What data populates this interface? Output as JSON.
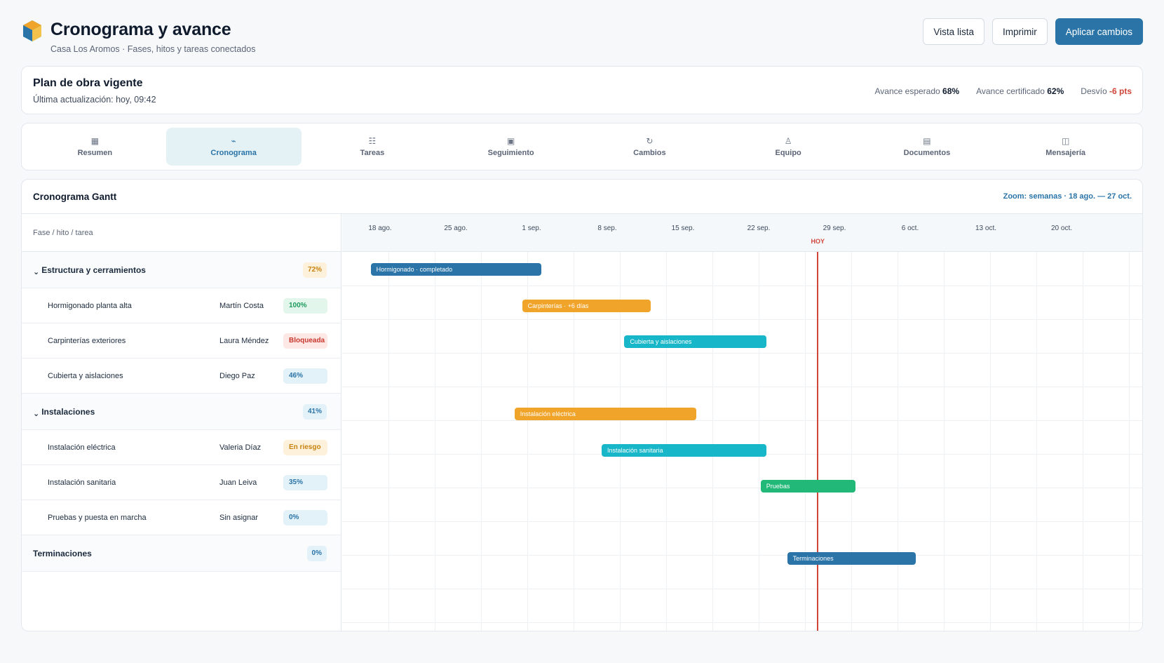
{
  "header": {
    "title": "Cronograma y avance",
    "subtitle": "Casa Los Aromos · Fases, hitos y tareas conectados",
    "buttons": {
      "list_view": "Vista lista",
      "print": "Imprimir",
      "apply": "Aplicar cambios"
    }
  },
  "plan": {
    "title": "Plan de obra vigente",
    "updated": "Última actualización: hoy, 09:42",
    "stats": [
      {
        "label": "Avance esperado",
        "value": "68%",
        "negative": false
      },
      {
        "label": "Avance certificado",
        "value": "62%",
        "negative": false
      },
      {
        "label": "Desvío",
        "value": "-6 pts",
        "negative": true
      }
    ]
  },
  "tabs": [
    {
      "label": "Resumen",
      "icon": "▦",
      "icon_name": "grid-icon",
      "active": false
    },
    {
      "label": "Cronograma",
      "icon": "⌁",
      "icon_name": "chart-line-icon",
      "active": true
    },
    {
      "label": "Tareas",
      "icon": "☷",
      "icon_name": "list-icon",
      "active": false
    },
    {
      "label": "Seguimiento",
      "icon": "▣",
      "icon_name": "target-icon",
      "active": false
    },
    {
      "label": "Cambios",
      "icon": "↻",
      "icon_name": "refresh-icon",
      "active": false
    },
    {
      "label": "Equipo",
      "icon": "♙",
      "icon_name": "person-icon",
      "active": false
    },
    {
      "label": "Documentos",
      "icon": "▤",
      "icon_name": "document-icon",
      "active": false
    },
    {
      "label": "Mensajería",
      "icon": "◫",
      "icon_name": "message-icon",
      "active": false
    }
  ],
  "gantt": {
    "title": "Cronograma Gantt",
    "zoom": "Zoom: semanas · 18 ago. — 27 oct.",
    "column_header": "Fase / hito / tarea",
    "weeks": [
      "18 ago.",
      "25 ago.",
      "1 sep.",
      "8 sep.",
      "15 sep.",
      "22 sep.",
      "29 sep.",
      "6 oct.",
      "13 oct.",
      "20 oct."
    ],
    "today_label": "HOY",
    "today_offset_weeks": 5.78,
    "rows": [
      {
        "type": "phase",
        "name": "Estructura y cerramientos",
        "badge": "72%",
        "badge_style": "amber",
        "bar": {
          "label": "Hormigonado · completado",
          "start": 0.2,
          "end": 2.45,
          "color": "#2a74a8"
        }
      },
      {
        "type": "task",
        "name": "Hormigonado planta alta",
        "owner": "Martín Costa",
        "badge": "100%",
        "badge_style": "green",
        "bar": {
          "label": "Carpinterías · +6 días",
          "start": 2.2,
          "end": 3.9,
          "color": "#f0a42a"
        }
      },
      {
        "type": "task",
        "name": "Carpinterías exteriores",
        "owner": "Laura Méndez",
        "badge": "Bloqueada",
        "badge_style": "red",
        "bar": {
          "label": "Cubierta y aislaciones",
          "start": 3.55,
          "end": 5.43,
          "color": "#17b6c8"
        }
      },
      {
        "type": "task",
        "name": "Cubierta y aislaciones",
        "owner": "Diego Paz",
        "badge": "46%",
        "badge_style": "blue",
        "bar": null
      },
      {
        "type": "phase",
        "name": "Instalaciones",
        "badge": "41%",
        "badge_style": "blue",
        "bar": {
          "label": "Instalación eléctrica",
          "start": 2.1,
          "end": 4.5,
          "color": "#f0a42a"
        }
      },
      {
        "type": "task",
        "name": "Instalación eléctrica",
        "owner": "Valeria Díaz",
        "badge": "En riesgo",
        "badge_style": "amber",
        "bar": {
          "label": "Instalación sanitaria",
          "start": 3.25,
          "end": 5.43,
          "color": "#17b6c8"
        }
      },
      {
        "type": "task",
        "name": "Instalación sanitaria",
        "owner": "Juan Leiva",
        "badge": "35%",
        "badge_style": "blue",
        "bar": {
          "label": "Pruebas",
          "start": 5.35,
          "end": 6.6,
          "color": "#22b877"
        }
      },
      {
        "type": "task",
        "name": "Pruebas y puesta en marcha",
        "owner": "Sin asignar",
        "badge": "0%",
        "badge_style": "blue",
        "bar": null
      },
      {
        "type": "phase",
        "name": "Terminaciones",
        "badge": "0%",
        "badge_style": "blue",
        "bar": {
          "label": "Terminaciones",
          "start": 5.7,
          "end": 7.4,
          "color": "#2a74a8"
        }
      }
    ]
  },
  "colors": {
    "accent": "#2a74a8",
    "today": "#d0453a"
  }
}
